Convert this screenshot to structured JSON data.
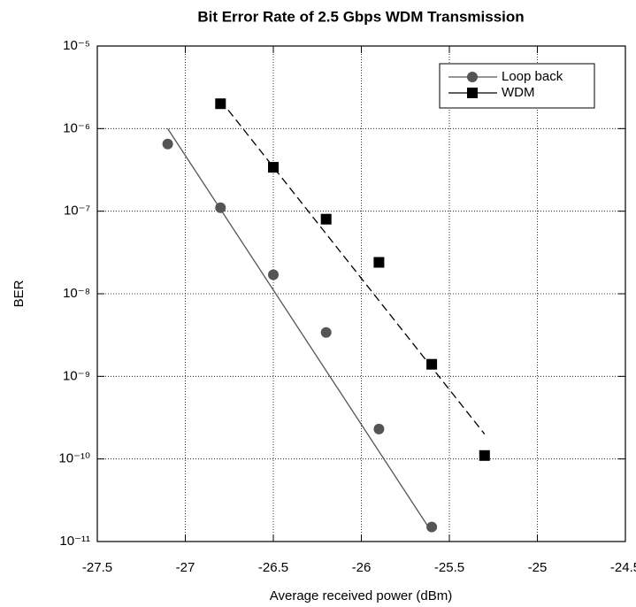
{
  "chart_data": {
    "type": "scatter",
    "title": "Bit Error Rate of 2.5 Gbps WDM Transmission",
    "x_label": "Average received power (dBm)",
    "y_label": "BER",
    "xlim": [
      -27.5,
      -24.5
    ],
    "xticks": [
      -27.5,
      -27,
      -26.5,
      -26,
      -25.5,
      -25,
      -24.5
    ],
    "ylim": [
      1e-11,
      1e-05
    ],
    "y_scale": "log",
    "yticks": [
      {
        "value": 1e-11,
        "label": "10⁻¹¹"
      },
      {
        "value": 1e-10,
        "label": "10⁻¹⁰"
      },
      {
        "value": 1e-09,
        "label": "10⁻⁹"
      },
      {
        "value": 1e-08,
        "label": "10⁻⁸"
      },
      {
        "value": 1e-07,
        "label": "10⁻⁷"
      },
      {
        "value": 1e-06,
        "label": "10⁻⁶"
      },
      {
        "value": 1e-05,
        "label": "10⁻⁵"
      }
    ],
    "grid": true,
    "legend": "top-right",
    "series": [
      {
        "name": "Loop back",
        "color": "#555555",
        "marker": "circle",
        "line": "solid",
        "x": [
          -27.1,
          -26.8,
          -26.5,
          -26.2,
          -25.9,
          -25.6
        ],
        "values": [
          6.5e-07,
          1.1e-07,
          1.7e-08,
          3.4e-09,
          2.3e-10,
          1.5e-11
        ],
        "fit": {
          "x": [
            -27.1,
            -25.6
          ],
          "values": [
            1e-06,
            1.3e-11
          ]
        }
      },
      {
        "name": "WDM",
        "color": "#000000",
        "marker": "square",
        "line": "dashed",
        "x": [
          -26.8,
          -26.5,
          -26.2,
          -25.9,
          -25.6,
          -25.3
        ],
        "values": [
          2e-06,
          3.4e-07,
          8e-08,
          2.4e-08,
          1.4e-09,
          1.1e-10
        ],
        "fit": {
          "x": [
            -26.8,
            -25.3
          ],
          "values": [
            2.2e-06,
            2e-10
          ]
        }
      }
    ]
  }
}
